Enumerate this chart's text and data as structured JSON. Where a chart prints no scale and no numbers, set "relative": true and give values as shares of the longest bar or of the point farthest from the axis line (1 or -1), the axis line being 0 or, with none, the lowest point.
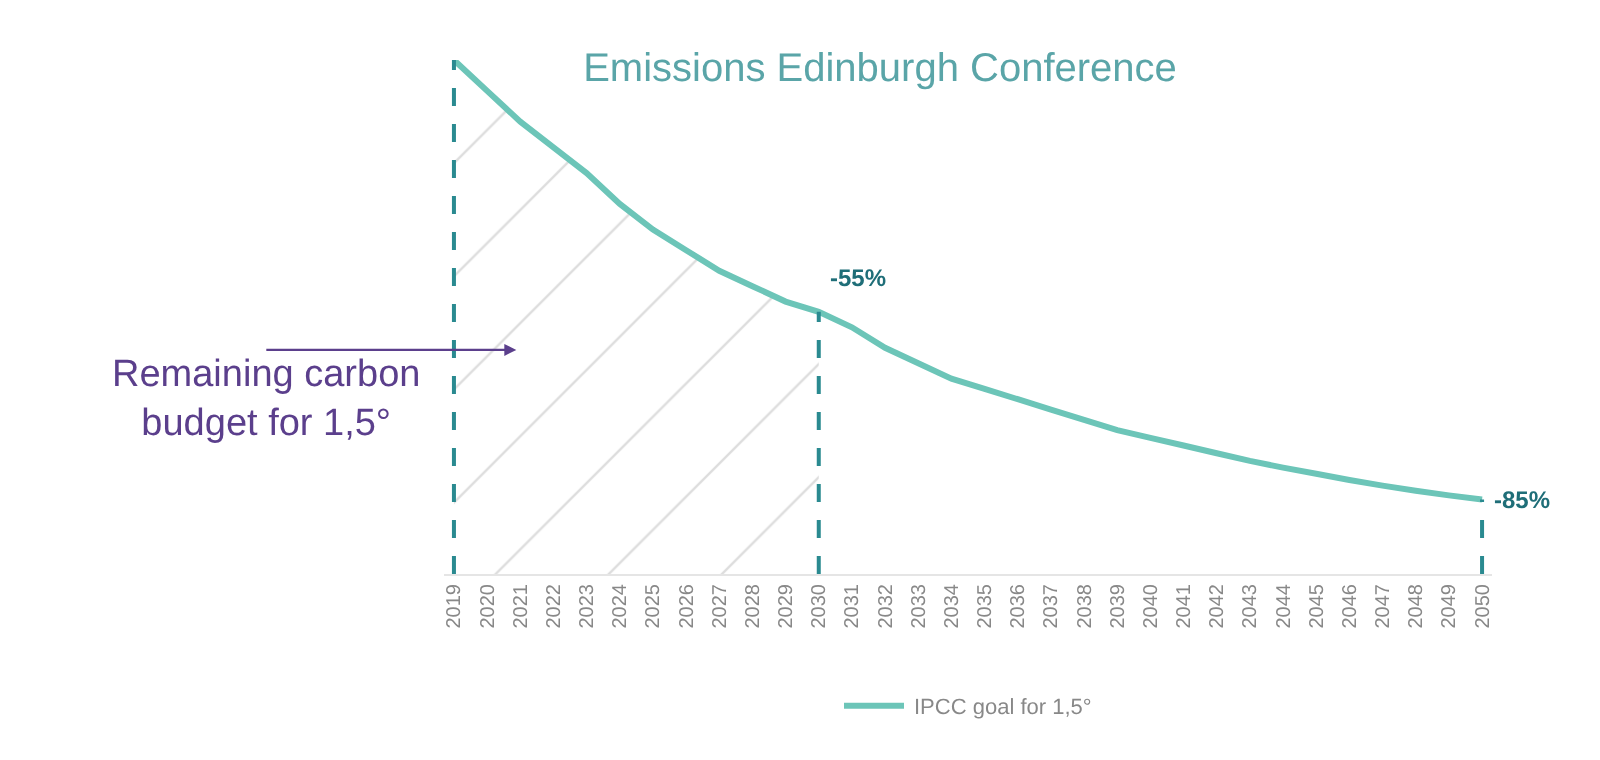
{
  "chart_data": {
    "type": "line",
    "title": "Emissions Edinburgh Conference",
    "relative": true,
    "legend": "bottom",
    "marker": "none",
    "line_style": "solid",
    "categories": [
      "2019",
      "2020",
      "2021",
      "2022",
      "2023",
      "2024",
      "2025",
      "2026",
      "2027",
      "2028",
      "2029",
      "2030",
      "2031",
      "2032",
      "2033",
      "2034",
      "2035",
      "2036",
      "2037",
      "2038",
      "2039",
      "2040",
      "2041",
      "2042",
      "2043",
      "2044",
      "2045",
      "2046",
      "2047",
      "2048",
      "2049",
      "2050"
    ],
    "series": [
      {
        "name": "IPCC goal for 1,5°",
        "color": "#6cc5b8",
        "values": [
          1.0,
          0.94,
          0.88,
          0.83,
          0.78,
          0.72,
          0.67,
          0.63,
          0.59,
          0.56,
          0.53,
          0.51,
          0.48,
          0.44,
          0.41,
          0.38,
          0.36,
          0.34,
          0.32,
          0.3,
          0.28,
          0.265,
          0.25,
          0.235,
          0.22,
          0.207,
          0.195,
          0.183,
          0.172,
          0.162,
          0.153,
          0.145
        ]
      },
      {
        "type": "area",
        "color": "#bbbbbb",
        "values": [
          1.0,
          0.94,
          0.88,
          0.83,
          0.78,
          0.72,
          0.67,
          0.63,
          0.59,
          0.56,
          0.53,
          0.51,
          null,
          null,
          null,
          null,
          null,
          null,
          null,
          null,
          null,
          null,
          null,
          null,
          null,
          null,
          null,
          null,
          null,
          null,
          null,
          null
        ]
      }
    ],
    "ref_lines": [
      {
        "axis": "x",
        "value": "2019",
        "color": "#2a8a90",
        "line_style": "dashed"
      },
      {
        "axis": "x",
        "value": "2030",
        "color": "#2a8a90",
        "line_style": "dashed"
      },
      {
        "axis": "x",
        "value": "2050",
        "color": "#2a8a90",
        "line_style": "dashed"
      }
    ],
    "annotations": [
      {
        "text": "-55%",
        "x": "2030",
        "y": 0.51
      },
      {
        "text": "-85%",
        "x": "2050",
        "y": 0.145
      },
      "Remaining carbon budget for 1,5°"
    ]
  }
}
